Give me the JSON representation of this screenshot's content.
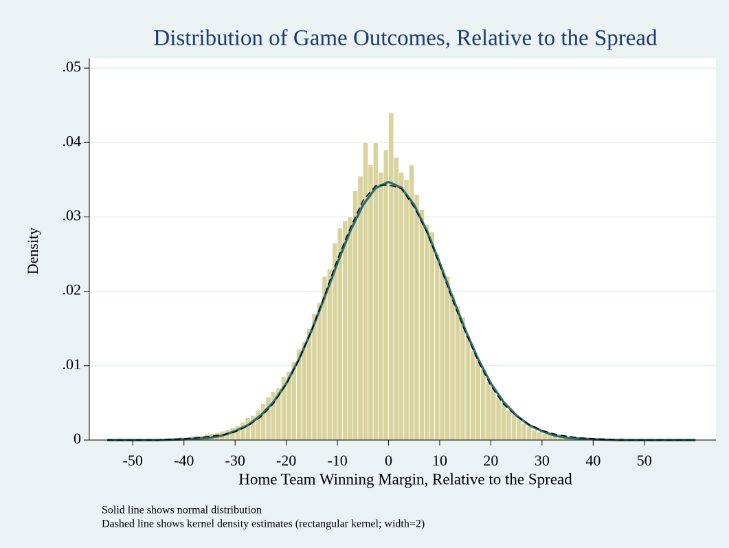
{
  "chart_data": {
    "type": "histogram",
    "title": "Distribution of Game Outcomes, Relative to the Spread",
    "xlabel": "Home Team Winning Margin, Relative to the Spread",
    "ylabel": "Density",
    "notes": [
      "Solid line shows normal distribution",
      "Dashed line shows kernel density estimates (rectangular kernel; width=2)"
    ],
    "color": "#d9d39e",
    "bins": [
      -45,
      -44,
      -43,
      -42,
      -41,
      -40,
      -39,
      -38,
      -37,
      -36,
      -35,
      -34,
      -33,
      -32,
      -31,
      -30,
      -29,
      -28,
      -27,
      -26,
      -25,
      -24,
      -23,
      -22,
      -21,
      -20,
      -19,
      -18,
      -17,
      -16,
      -15,
      -14,
      -13,
      -12,
      -11,
      -10,
      -9,
      -8,
      -7,
      -6,
      -5,
      -4,
      -3,
      -2,
      -1,
      0,
      1,
      2,
      3,
      4,
      5,
      6,
      7,
      8,
      9,
      10,
      11,
      12,
      13,
      14,
      15,
      16,
      17,
      18,
      19,
      20,
      21,
      22,
      23,
      24,
      25,
      26,
      27,
      28,
      29,
      30,
      31,
      32,
      33,
      34,
      35,
      36,
      37,
      38,
      39,
      40,
      41,
      42,
      43,
      44,
      45,
      46,
      47,
      48,
      49,
      50
    ],
    "values": [
      0,
      0,
      0,
      0.0002,
      0.0004,
      0.0003,
      0.0005,
      0.0006,
      0.0006,
      0.0008,
      0.0009,
      0.001,
      0.0012,
      0.0014,
      0.0017,
      0.0019,
      0.0024,
      0.003,
      0.0033,
      0.004,
      0.0049,
      0.0058,
      0.0065,
      0.007,
      0.0085,
      0.0092,
      0.0105,
      0.0122,
      0.0132,
      0.015,
      0.017,
      0.0185,
      0.022,
      0.023,
      0.0265,
      0.0285,
      0.0295,
      0.03,
      0.0335,
      0.0355,
      0.04,
      0.037,
      0.04,
      0.036,
      0.039,
      0.044,
      0.038,
      0.036,
      0.035,
      0.037,
      0.033,
      0.031,
      0.029,
      0.028,
      0.025,
      0.023,
      0.022,
      0.0195,
      0.018,
      0.0165,
      0.014,
      0.012,
      0.0108,
      0.0095,
      0.0078,
      0.007,
      0.0058,
      0.005,
      0.004,
      0.0035,
      0.0028,
      0.0022,
      0.0018,
      0.0014,
      0.0011,
      0.0009,
      0.0008,
      0.0006,
      0.0005,
      0.0004,
      0.0004,
      0.0003,
      0.0002,
      0.0002,
      0.0002,
      0.0002,
      0.0001,
      0,
      0,
      0,
      0.0003,
      0,
      0,
      0,
      0
    ],
    "curves": [
      {
        "style": "solid",
        "color": "#2e6e6c",
        "x": [
          -55,
          -50,
          -45,
          -40,
          -37.5,
          -35,
          -32.5,
          -30,
          -27.5,
          -25,
          -22.5,
          -20,
          -17.5,
          -15,
          -12.5,
          -10,
          -7.5,
          -5,
          -2.5,
          0,
          2.5,
          5,
          7.5,
          10,
          12.5,
          15,
          17.5,
          20,
          22.5,
          25,
          27.5,
          30,
          32.5,
          35,
          37.5,
          40,
          45,
          50,
          55,
          60
        ],
        "values": [
          0,
          0,
          0,
          0.0001,
          0.0002,
          0.0003,
          0.0006,
          0.0012,
          0.002,
          0.0033,
          0.0051,
          0.0076,
          0.0109,
          0.0148,
          0.0192,
          0.0238,
          0.0281,
          0.0316,
          0.0339,
          0.0347,
          0.0339,
          0.0316,
          0.0281,
          0.0238,
          0.0192,
          0.0148,
          0.0109,
          0.0076,
          0.0051,
          0.0033,
          0.002,
          0.0012,
          0.0006,
          0.0003,
          0.0002,
          0.0001,
          0,
          0,
          0,
          0
        ]
      },
      {
        "style": "dashed",
        "color": "#000000",
        "x": [
          -55,
          -50,
          -45,
          -40,
          -37.5,
          -35,
          -32.5,
          -30,
          -27.5,
          -25,
          -22.5,
          -20,
          -17.5,
          -15,
          -12.5,
          -10,
          -7.5,
          -5,
          -2.5,
          0,
          2.5,
          5,
          7.5,
          10,
          12.5,
          15,
          17.5,
          20,
          22.5,
          25,
          27.5,
          30,
          32.5,
          35,
          37.5,
          40,
          45,
          50,
          55,
          60
        ],
        "values": [
          0,
          0,
          0,
          0.0002,
          0.0003,
          0.0005,
          0.0007,
          0.0011,
          0.0019,
          0.0031,
          0.0049,
          0.0075,
          0.0108,
          0.0148,
          0.0195,
          0.0243,
          0.0285,
          0.0322,
          0.0342,
          0.0343,
          0.0338,
          0.0313,
          0.0279,
          0.0235,
          0.0188,
          0.0145,
          0.0106,
          0.0073,
          0.0048,
          0.0032,
          0.0021,
          0.0013,
          0.0008,
          0.0005,
          0.0003,
          0.0002,
          0,
          0,
          0,
          0
        ]
      }
    ],
    "xlim": [
      -58.5,
      64
    ],
    "ylim": [
      0,
      0.0513
    ],
    "xticks": [
      -50,
      -40,
      -30,
      -20,
      -10,
      0,
      10,
      20,
      30,
      40,
      50
    ],
    "yticks": [
      0,
      {
        "value": 0.01,
        "label": ".01"
      },
      {
        "value": 0.02,
        "label": ".02"
      },
      {
        "value": 0.03,
        "label": ".03"
      },
      {
        "value": 0.04,
        "label": ".04"
      },
      {
        "value": 0.05,
        "label": ".05"
      }
    ],
    "grid": true
  }
}
